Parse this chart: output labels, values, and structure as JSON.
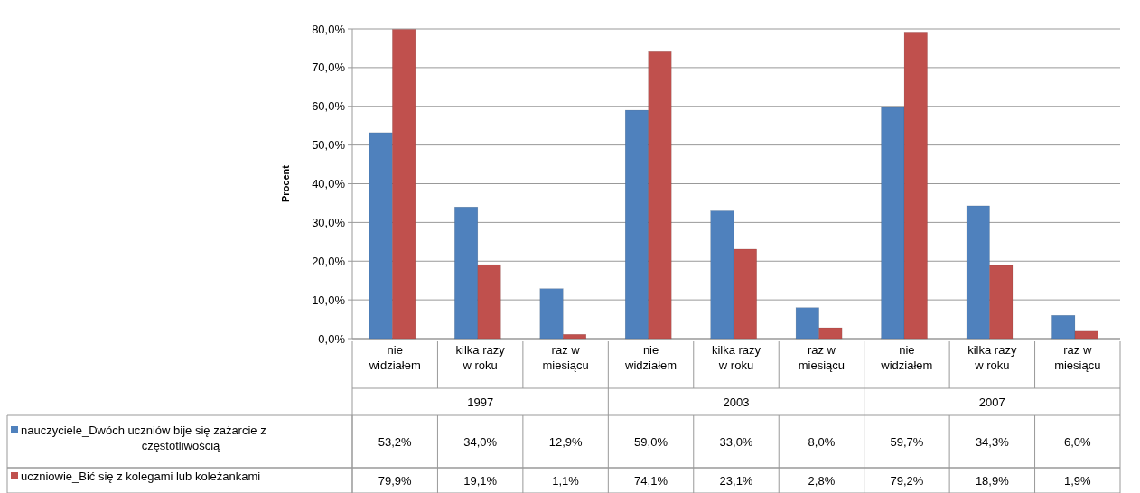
{
  "chart_data": {
    "type": "bar",
    "ylabel": "Procent",
    "categories": [
      "nie widziałem",
      "kilka razy w roku",
      "raz w miesiącu",
      "nie widziałem",
      "kilka razy w roku",
      "raz w miesiącu",
      "nie widziałem",
      "kilka razy w roku",
      "raz w miesiącu"
    ],
    "annotations": [
      "1997",
      "2003",
      "2007"
    ],
    "series": [
      {
        "name": "nauczyciele_Dwóch uczniów bije się zażarcie z częstotliwością",
        "color": "#4f81bd",
        "values": [
          53.2,
          34.0,
          12.9,
          59.0,
          33.0,
          8.0,
          59.7,
          34.3,
          6.0
        ],
        "value_labels": [
          "53,2%",
          "34,0%",
          "12,9%",
          "59,0%",
          "33,0%",
          "8,0%",
          "59,7%",
          "34,3%",
          "6,0%"
        ]
      },
      {
        "name": "uczniowie_Bić się z kolegami lub koleżankami",
        "color": "#c0504d",
        "values": [
          79.9,
          19.1,
          1.1,
          74.1,
          23.1,
          2.8,
          79.2,
          18.9,
          1.9
        ],
        "value_labels": [
          "79,9%",
          "19,1%",
          "1,1%",
          "74,1%",
          "23,1%",
          "2,8%",
          "79,2%",
          "18,9%",
          "1,9%"
        ]
      }
    ],
    "ylim": [
      0,
      80
    ],
    "yticks": [
      {
        "value": 0,
        "label": "0,0%"
      },
      {
        "value": 10,
        "label": "10,0%"
      },
      {
        "value": 20,
        "label": "20,0%"
      },
      {
        "value": 30,
        "label": "30,0%"
      },
      {
        "value": 40,
        "label": "40,0%"
      },
      {
        "value": 50,
        "label": "50,0%"
      },
      {
        "value": 60,
        "label": "60,0%"
      },
      {
        "value": 70,
        "label": "70,0%"
      },
      {
        "value": 80,
        "label": "80,0%"
      }
    ],
    "grid": "y",
    "legend": "bottom"
  }
}
